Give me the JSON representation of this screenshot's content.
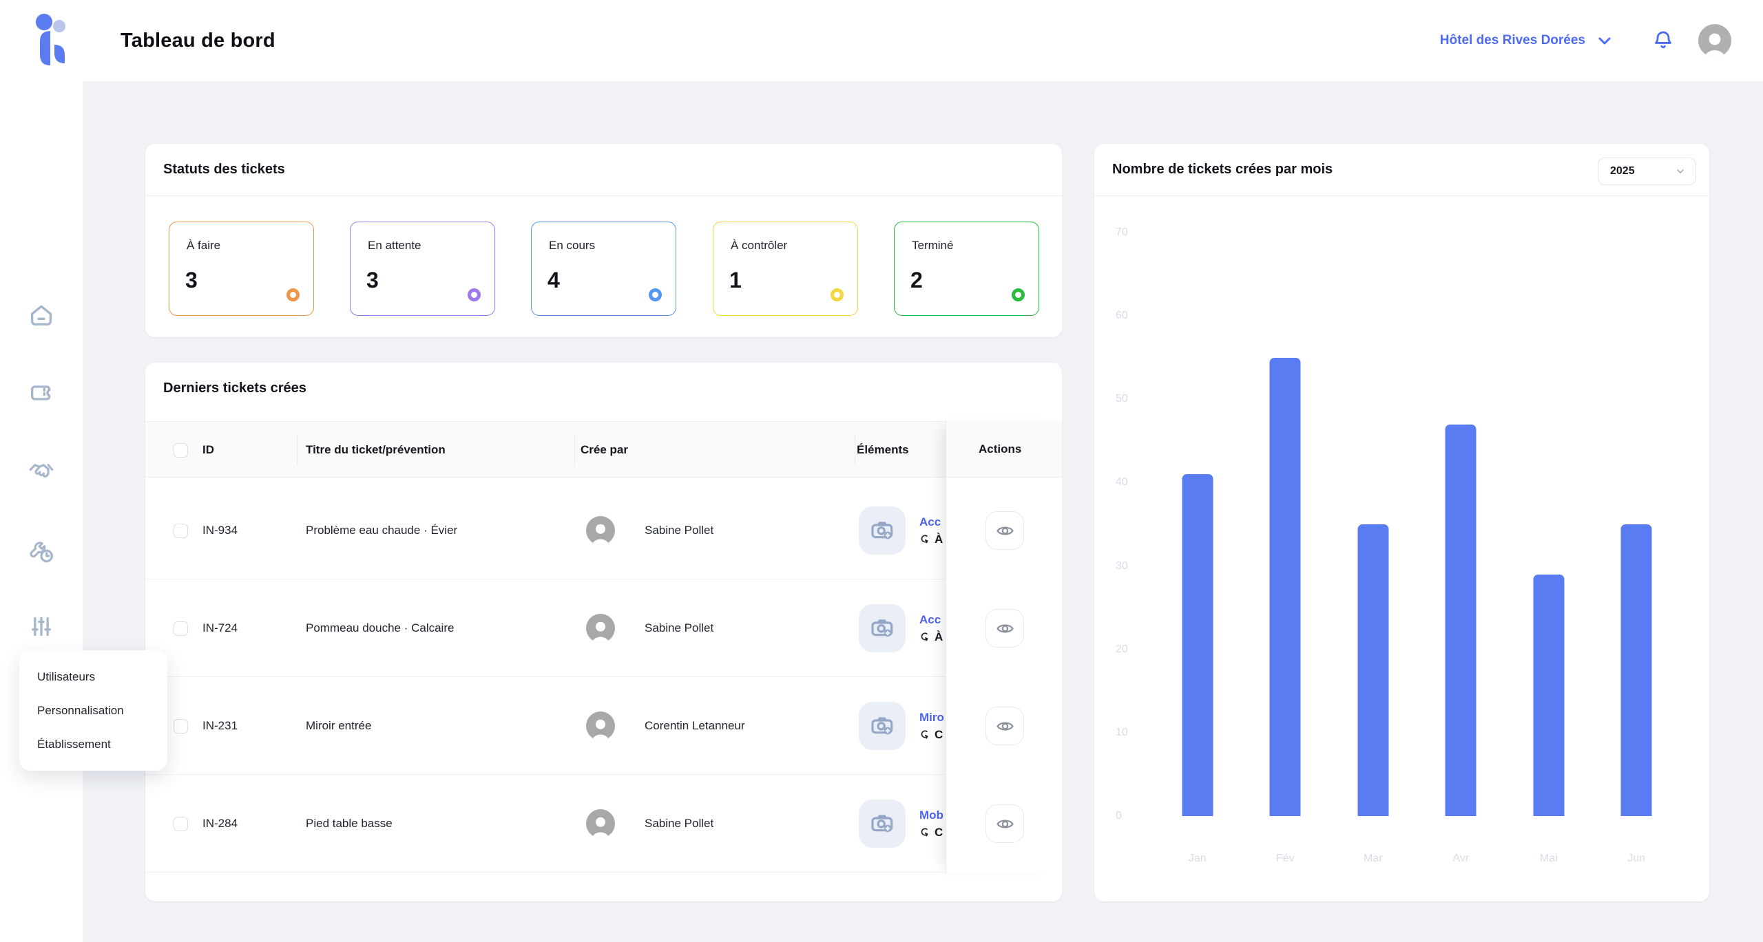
{
  "topbar": {
    "title": "Tableau de bord",
    "account_name": "Hôtel des Rives Dorées"
  },
  "sidebar": {
    "icons": [
      "home",
      "ticket",
      "handshake",
      "maintenance",
      "sliders"
    ],
    "menu_items": [
      "Utilisateurs",
      "Personnalisation",
      "Établissement"
    ]
  },
  "status_card": {
    "title": "Statuts des tickets",
    "statuses": [
      {
        "label": "À faire",
        "count": "3",
        "color": "#ee9549"
      },
      {
        "label": "En attente",
        "count": "3",
        "color": "#9c78ee"
      },
      {
        "label": "En cours",
        "count": "4",
        "color": "#5596f0"
      },
      {
        "label": "À contrôler",
        "count": "1",
        "color": "#f2d73e"
      },
      {
        "label": "Terminé",
        "count": "2",
        "color": "#27bc3c"
      }
    ]
  },
  "tickets_card": {
    "title": "Derniers tickets crées",
    "columns": [
      "ID",
      "Titre du ticket/prévention",
      "Crée par",
      "Éléments",
      "Actions"
    ],
    "rows": [
      {
        "id": "IN-934",
        "title": "Problème eau chaude · Évier",
        "creator": "Sabine Pollet",
        "element": "Acc",
        "element_sub": "À"
      },
      {
        "id": "IN-724",
        "title": "Pommeau douche · Calcaire",
        "creator": "Sabine Pollet",
        "element": "Acc",
        "element_sub": "À"
      },
      {
        "id": "IN-231",
        "title": "Miroir entrée",
        "creator": "Corentin Letanneur",
        "element": "Miro",
        "element_sub": "C"
      },
      {
        "id": "IN-284",
        "title": "Pied table basse",
        "creator": "Sabine Pollet",
        "element": "Mob",
        "element_sub": "C"
      }
    ]
  },
  "chart_card": {
    "title": "Nombre de tickets crées par mois",
    "year": "2025"
  },
  "chart_data": {
    "type": "bar",
    "categories": [
      "Jan",
      "Fév",
      "Mar",
      "Avr",
      "Mai",
      "Jun"
    ],
    "values": [
      41,
      55,
      35,
      47,
      29,
      35
    ],
    "title": "Nombre de tickets crées par mois",
    "xlabel": "",
    "ylabel": "",
    "ylim": [
      0,
      70
    ],
    "yticks": [
      0,
      10,
      20,
      30,
      40,
      50,
      60,
      70
    ],
    "grid": false,
    "legend": "none",
    "bar_color": "#5a7cf3",
    "tick_color": "#d8dce5"
  },
  "colors": {
    "brand_blue": "#4d6bf0",
    "link_blue": "#4d63ee",
    "page_bg": "#f0f2f6"
  }
}
